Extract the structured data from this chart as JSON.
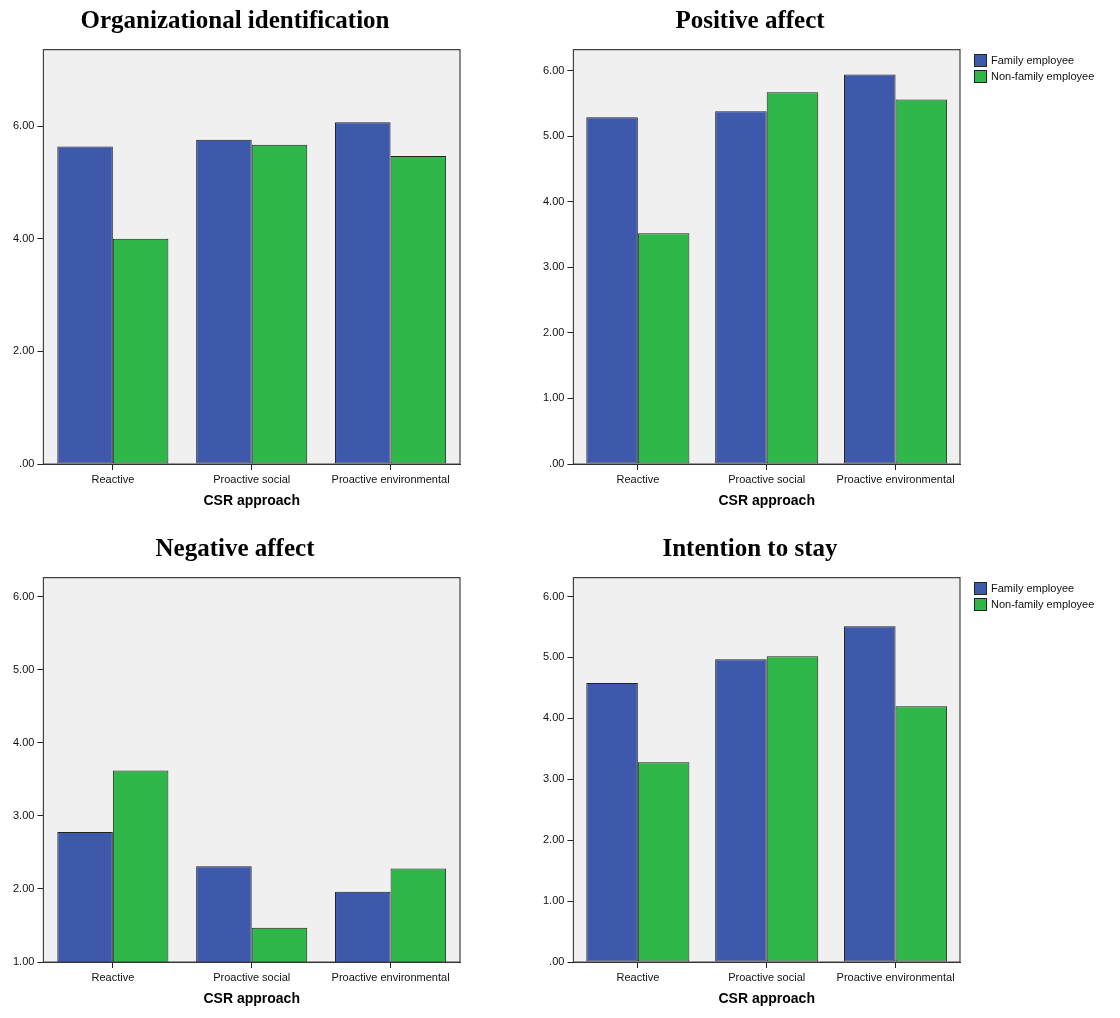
{
  "chart_data": [
    {
      "type": "bar",
      "title": "Organizational identification",
      "xlabel": "CSR approach",
      "categories": [
        "Reactive",
        "Proactive social",
        "Proactive environmental"
      ],
      "series": [
        {
          "color": "#3e58ac",
          "values": [
            5.64,
            5.76,
            6.07
          ]
        },
        {
          "color": "#2fb74a",
          "values": [
            4.0,
            5.67,
            5.47
          ]
        }
      ],
      "ylim": [
        0,
        7.36
      ],
      "yticks": [
        {
          "value": 0,
          "label": ".00"
        },
        {
          "value": 2,
          "label": "2.00"
        },
        {
          "value": 4,
          "label": "4.00"
        },
        {
          "value": 6,
          "label": "6.00"
        }
      ],
      "legend": false
    },
    {
      "type": "bar",
      "title": "Positive affect",
      "xlabel": "CSR approach",
      "categories": [
        "Reactive",
        "Proactive social",
        "Proactive environmental"
      ],
      "series": [
        {
          "name": "Family employee",
          "color": "#3e58ac",
          "values": [
            5.29,
            5.38,
            5.94
          ]
        },
        {
          "name": "Non-family employee",
          "color": "#2fb74a",
          "values": [
            3.52,
            5.67,
            5.56
          ]
        }
      ],
      "ylim": [
        0,
        6.32
      ],
      "yticks": [
        {
          "value": 0,
          "label": ".00"
        },
        {
          "value": 1,
          "label": "1.00"
        },
        {
          "value": 2,
          "label": "2.00"
        },
        {
          "value": 3,
          "label": "3.00"
        },
        {
          "value": 4,
          "label": "4.00"
        },
        {
          "value": 5,
          "label": "5.00"
        },
        {
          "value": 6,
          "label": "6.00"
        }
      ],
      "legend": "right"
    },
    {
      "type": "bar",
      "title": "Negative affect",
      "xlabel": "CSR approach",
      "categories": [
        "Reactive",
        "Proactive social",
        "Proactive environmental"
      ],
      "series": [
        {
          "color": "#3e58ac",
          "values": [
            2.78,
            2.31,
            1.96
          ]
        },
        {
          "color": "#2fb74a",
          "values": [
            3.62,
            1.47,
            2.28
          ]
        }
      ],
      "ylim": [
        1,
        6.26
      ],
      "yticks": [
        {
          "value": 1,
          "label": "1.00"
        },
        {
          "value": 2,
          "label": "2.00"
        },
        {
          "value": 3,
          "label": "3.00"
        },
        {
          "value": 4,
          "label": "4.00"
        },
        {
          "value": 5,
          "label": "5.00"
        },
        {
          "value": 6,
          "label": "6.00"
        }
      ],
      "legend": false
    },
    {
      "type": "bar",
      "title": "Intention to stay",
      "xlabel": "CSR approach",
      "categories": [
        "Reactive",
        "Proactive social",
        "Proactive environmental"
      ],
      "series": [
        {
          "name": "Family employee",
          "color": "#3e58ac",
          "values": [
            4.58,
            4.97,
            5.51
          ]
        },
        {
          "name": "Non-family employee",
          "color": "#2fb74a",
          "values": [
            3.28,
            5.02,
            4.2
          ]
        }
      ],
      "ylim": [
        0,
        6.31
      ],
      "yticks": [
        {
          "value": 0,
          "label": ".00"
        },
        {
          "value": 1,
          "label": "1.00"
        },
        {
          "value": 2,
          "label": "2.00"
        },
        {
          "value": 3,
          "label": "3.00"
        },
        {
          "value": 4,
          "label": "4.00"
        },
        {
          "value": 5,
          "label": "5.00"
        },
        {
          "value": 6,
          "label": "6.00"
        }
      ],
      "legend": "right"
    }
  ]
}
